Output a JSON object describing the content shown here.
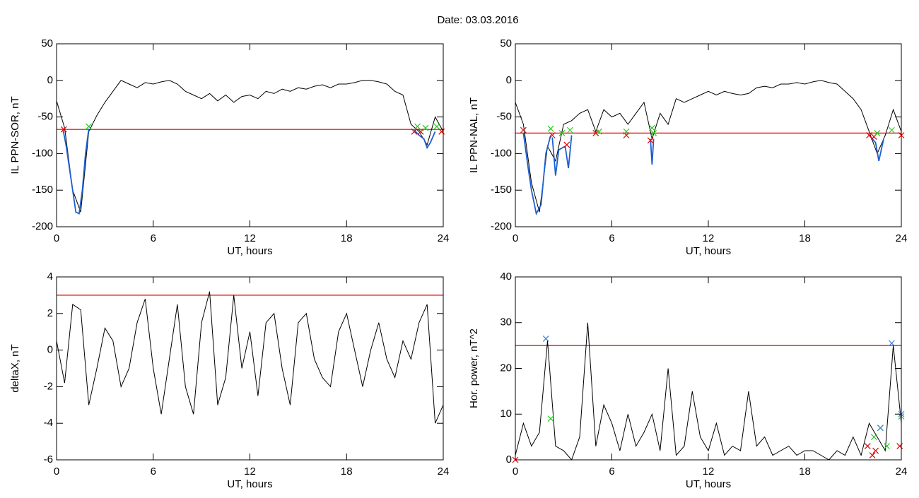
{
  "title": "Date:  03.03.2016",
  "chart_data": [
    {
      "type": "line",
      "ylabel": "IL PPN-SOR, nT",
      "xlabel": "UT, hours",
      "xlim": [
        0,
        24
      ],
      "xticks": [
        0,
        6,
        12,
        18,
        24
      ],
      "ylim": [
        -200,
        50
      ],
      "yticks": [
        -200,
        -150,
        -100,
        -50,
        0,
        50
      ],
      "hlines": [
        {
          "value": -67,
          "color": "#e00000"
        }
      ],
      "series": [
        {
          "color": "#000000",
          "x": [
            0,
            0.5,
            1,
            1.5,
            2,
            2.5,
            3,
            3.5,
            4,
            4.5,
            5,
            5.5,
            6,
            6.5,
            7,
            7.5,
            8,
            8.5,
            9,
            9.5,
            10,
            10.5,
            11,
            11.5,
            12,
            12.5,
            13,
            13.5,
            14,
            14.5,
            15,
            15.5,
            16,
            16.5,
            17,
            17.5,
            18,
            18.5,
            19,
            19.5,
            20,
            20.5,
            21,
            21.5,
            22,
            22.5,
            23,
            23.5,
            24
          ],
          "values": [
            -28,
            -65,
            -150,
            -180,
            -70,
            -48,
            -30,
            -15,
            0,
            -5,
            -10,
            -3,
            -5,
            -2,
            0,
            -5,
            -15,
            -20,
            -25,
            -18,
            -28,
            -20,
            -30,
            -22,
            -20,
            -25,
            -15,
            -18,
            -12,
            -15,
            -10,
            -12,
            -8,
            -6,
            -10,
            -5,
            -5,
            -3,
            0,
            0,
            -2,
            -5,
            -15,
            -20,
            -60,
            -70,
            -88,
            -50,
            -70
          ]
        },
        {
          "color": "#1f5fd0",
          "x": [
            0.4,
            0.6,
            0.8,
            1,
            1.2,
            1.4,
            1.6,
            1.8,
            2
          ],
          "values": [
            -67,
            -90,
            -120,
            -150,
            -180,
            -182,
            -150,
            -100,
            -66
          ]
        },
        {
          "color": "#1f5fd0",
          "x": [
            22.2,
            22.5,
            22.8,
            23,
            23.2,
            23.5
          ],
          "values": [
            -68,
            -75,
            -80,
            -92,
            -85,
            -70
          ]
        },
        {
          "color": "#e00000",
          "marker": "x",
          "x": [
            0.45,
            22.2,
            22.6,
            23.9
          ],
          "values": [
            -67,
            -70,
            -70,
            -70
          ]
        },
        {
          "color": "#22cc22",
          "marker": "x",
          "x": [
            2,
            22.4,
            22.9,
            23.6
          ],
          "values": [
            -63,
            -63,
            -65,
            -63
          ]
        }
      ]
    },
    {
      "type": "line",
      "ylabel": "IL PPN-NAL, nT",
      "xlabel": "UT, hours",
      "xlim": [
        0,
        24
      ],
      "xticks": [
        0,
        6,
        12,
        18,
        24
      ],
      "ylim": [
        -200,
        50
      ],
      "yticks": [
        -200,
        -150,
        -100,
        -50,
        0,
        50
      ],
      "hlines": [
        {
          "value": -72,
          "color": "#e00000"
        }
      ],
      "series": [
        {
          "color": "#000000",
          "x": [
            0,
            0.5,
            1,
            1.5,
            2,
            2.5,
            3,
            3.5,
            4,
            4.5,
            5,
            5.5,
            6,
            6.5,
            7,
            7.5,
            8,
            8.5,
            9,
            9.5,
            10,
            10.5,
            11,
            11.5,
            12,
            12.5,
            13,
            13.5,
            14,
            14.5,
            15,
            15.5,
            16,
            16.5,
            17,
            17.5,
            18,
            18.5,
            19,
            19.5,
            20,
            20.5,
            21,
            21.5,
            22,
            22.5,
            23,
            23.5,
            24
          ],
          "values": [
            -30,
            -60,
            -140,
            -180,
            -90,
            -110,
            -60,
            -55,
            -45,
            -40,
            -70,
            -40,
            -50,
            -45,
            -60,
            -45,
            -30,
            -80,
            -45,
            -60,
            -25,
            -30,
            -25,
            -20,
            -15,
            -20,
            -15,
            -18,
            -20,
            -18,
            -10,
            -8,
            -10,
            -5,
            -5,
            -3,
            -5,
            -2,
            0,
            -3,
            -5,
            -15,
            -25,
            -40,
            -70,
            -100,
            -75,
            -40,
            -70
          ]
        },
        {
          "color": "#1f5fd0",
          "x": [
            0.5,
            0.8,
            1,
            1.3,
            1.6,
            1.9,
            2.2
          ],
          "values": [
            -72,
            -120,
            -150,
            -182,
            -170,
            -100,
            -75
          ]
        },
        {
          "color": "#1f5fd0",
          "x": [
            2.3,
            2.5,
            2.7,
            3.1,
            3.3,
            3.5
          ],
          "values": [
            -78,
            -130,
            -95,
            -90,
            -120,
            -75
          ]
        },
        {
          "color": "#1f5fd0",
          "x": [
            8.4,
            8.5,
            8.6
          ],
          "values": [
            -80,
            -115,
            -80
          ]
        },
        {
          "color": "#1f5fd0",
          "x": [
            22,
            22.4,
            22.6,
            22.9
          ],
          "values": [
            -75,
            -85,
            -110,
            -80
          ]
        },
        {
          "color": "#e00000",
          "marker": "x",
          "x": [
            0.5,
            2.3,
            3.2,
            5,
            6.9,
            8.4,
            22,
            22.3,
            24
          ],
          "values": [
            -68,
            -75,
            -88,
            -72,
            -75,
            -82,
            -75,
            -77,
            -75
          ]
        },
        {
          "color": "#22cc22",
          "marker": "x",
          "x": [
            2.2,
            2.9,
            3.4,
            5.2,
            6.9,
            8.5,
            8.6,
            22.5,
            23.4
          ],
          "values": [
            -66,
            -72,
            -68,
            -70,
            -70,
            -65,
            -72,
            -72,
            -68
          ]
        }
      ]
    },
    {
      "type": "line",
      "ylabel": "deltaX, nT",
      "xlabel": "UT, hours",
      "xlim": [
        0,
        24
      ],
      "xticks": [
        0,
        6,
        12,
        18,
        24
      ],
      "ylim": [
        -6,
        4
      ],
      "yticks": [
        -6,
        -4,
        -2,
        0,
        2,
        4
      ],
      "hlines": [
        {
          "value": 3,
          "color": "#e00000"
        }
      ],
      "series": [
        {
          "color": "#000000",
          "x": [
            0,
            0.5,
            1,
            1.5,
            2,
            2.5,
            3,
            3.5,
            4,
            4.5,
            5,
            5.5,
            6,
            6.5,
            7,
            7.5,
            8,
            8.5,
            9,
            9.5,
            10,
            10.5,
            11,
            11.5,
            12,
            12.5,
            13,
            13.5,
            14,
            14.5,
            15,
            15.5,
            16,
            16.5,
            17,
            17.5,
            18,
            18.5,
            19,
            19.5,
            20,
            20.5,
            21,
            21.5,
            22,
            22.5,
            23,
            23.5,
            24
          ],
          "values": [
            0.5,
            -1.8,
            2.5,
            2.2,
            -3,
            -1,
            1.2,
            0.5,
            -2,
            -1,
            1.5,
            2.8,
            -1,
            -3.5,
            -0.5,
            2.5,
            -2,
            -3.5,
            1.5,
            3.2,
            -3,
            -1.5,
            3,
            -1,
            1,
            -2.5,
            1.5,
            2,
            -1,
            -3,
            1.5,
            2,
            -0.5,
            -1.5,
            -2,
            1,
            2,
            0,
            -2,
            0,
            1.5,
            -0.5,
            -1.5,
            0.5,
            -0.5,
            1.5,
            2.5,
            -4,
            -3
          ]
        }
      ]
    },
    {
      "type": "line",
      "ylabel": "Hor. power, nT^2",
      "xlabel": "UT, hours",
      "xlim": [
        0,
        24
      ],
      "xticks": [
        0,
        6,
        12,
        18,
        24
      ],
      "ylim": [
        0,
        40
      ],
      "yticks": [
        0,
        10,
        20,
        30,
        40
      ],
      "hlines": [
        {
          "value": 25,
          "color": "#e00000"
        }
      ],
      "series": [
        {
          "color": "#000000",
          "x": [
            0,
            0.5,
            1,
            1.5,
            2,
            2.5,
            3,
            3.5,
            4,
            4.5,
            5,
            5.5,
            6,
            6.5,
            7,
            7.5,
            8,
            8.5,
            9,
            9.5,
            10,
            10.5,
            11,
            11.5,
            12,
            12.5,
            13,
            13.5,
            14,
            14.5,
            15,
            15.5,
            16,
            16.5,
            17,
            17.5,
            18,
            18.5,
            19,
            19.5,
            20,
            20.5,
            21,
            21.5,
            22,
            22.5,
            23,
            23.5,
            24
          ],
          "values": [
            1,
            8,
            3,
            6,
            26,
            3,
            2,
            0,
            5,
            30,
            3,
            12,
            8,
            2,
            10,
            3,
            6,
            10,
            2,
            20,
            1,
            3,
            15,
            5,
            2,
            8,
            1,
            3,
            2,
            15,
            3,
            5,
            1,
            2,
            3,
            1,
            2,
            2,
            1,
            0,
            2,
            1,
            5,
            1,
            8,
            5,
            2,
            25,
            8
          ]
        },
        {
          "color": "#e00000",
          "marker": "x",
          "x": [
            0,
            21.9,
            22.2,
            22.4,
            23.9
          ],
          "values": [
            0,
            3,
            1,
            2,
            3
          ]
        },
        {
          "color": "#22cc22",
          "marker": "x",
          "x": [
            2.2,
            22.3,
            22.7,
            23.1,
            24
          ],
          "values": [
            9,
            5,
            7,
            3,
            9.5
          ]
        },
        {
          "color": "#3a7fd5",
          "marker": "x",
          "x": [
            1.9,
            22.7,
            23.4,
            24
          ],
          "values": [
            26.5,
            7,
            25.5,
            10
          ]
        }
      ]
    }
  ]
}
